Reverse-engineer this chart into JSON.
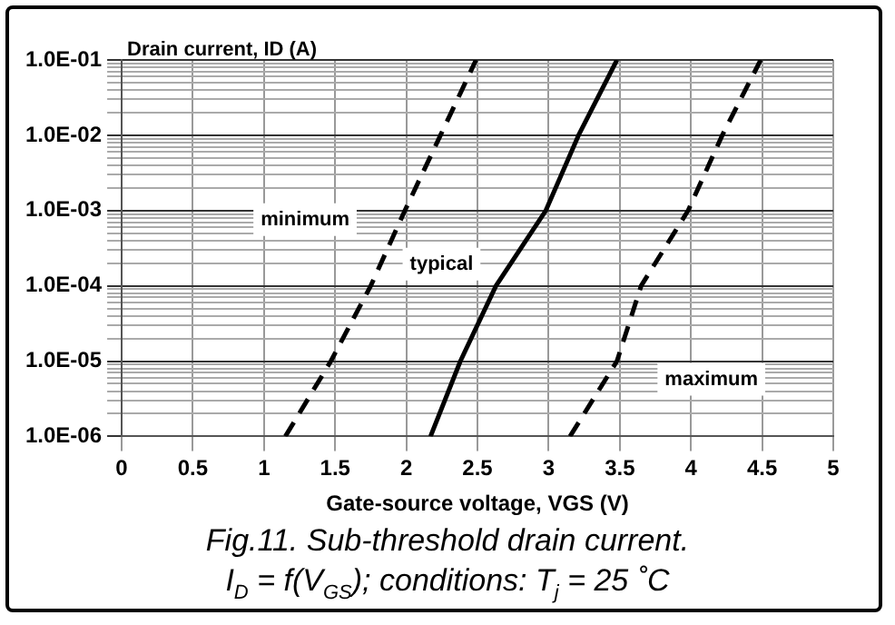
{
  "chart_data": {
    "type": "line",
    "ylabel": "Drain current, ID (A)",
    "xlabel": "Gate-source voltage, VGS (V)",
    "series": [
      {
        "name": "minimum",
        "color": "#000000",
        "line_style": "dashed",
        "x": [
          1.15,
          1.47,
          1.75,
          1.99,
          2.24,
          2.49
        ],
        "values": [
          1e-06,
          1e-05,
          0.0001,
          0.001,
          0.01,
          0.1
        ]
      },
      {
        "name": "typical",
        "color": "#000000",
        "line_style": "solid",
        "x": [
          2.17,
          2.38,
          2.63,
          2.98,
          3.21,
          3.48
        ],
        "values": [
          1e-06,
          1e-05,
          0.0001,
          0.001,
          0.01,
          0.1
        ]
      },
      {
        "name": "maximum",
        "color": "#000000",
        "line_style": "dashed",
        "x": [
          3.15,
          3.48,
          3.65,
          3.98,
          4.22,
          4.49
        ],
        "values": [
          1e-06,
          1e-05,
          0.0001,
          0.001,
          0.01,
          0.1
        ]
      }
    ],
    "log": "y",
    "xlim": [
      0,
      5
    ],
    "xticks": [
      0,
      0.5,
      1,
      1.5,
      2,
      2.5,
      3,
      3.5,
      4,
      4.5,
      5
    ],
    "ylim": [
      1e-06,
      0.1
    ],
    "yticks": [
      {
        "value": 1e-06,
        "label": "1.0E-06"
      },
      {
        "value": 2e-06,
        "label": null
      },
      {
        "value": 3e-06,
        "label": null
      },
      {
        "value": 4e-06,
        "label": null
      },
      {
        "value": 5e-06,
        "label": null
      },
      {
        "value": 6e-06,
        "label": null
      },
      {
        "value": 7e-06,
        "label": null
      },
      {
        "value": 8e-06,
        "label": null
      },
      {
        "value": 9e-06,
        "label": null
      },
      {
        "value": 1e-05,
        "label": "1.0E-05"
      },
      {
        "value": 2e-05,
        "label": null
      },
      {
        "value": 3e-05,
        "label": null
      },
      {
        "value": 4e-05,
        "label": null
      },
      {
        "value": 5e-05,
        "label": null
      },
      {
        "value": 6e-05,
        "label": null
      },
      {
        "value": 7e-05,
        "label": null
      },
      {
        "value": 8e-05,
        "label": null
      },
      {
        "value": 9e-05,
        "label": null
      },
      {
        "value": 0.0001,
        "label": "1.0E-04"
      },
      {
        "value": 0.0002,
        "label": null
      },
      {
        "value": 0.0003,
        "label": null
      },
      {
        "value": 0.0004,
        "label": null
      },
      {
        "value": 0.0005,
        "label": null
      },
      {
        "value": 0.0006,
        "label": null
      },
      {
        "value": 0.0007,
        "label": null
      },
      {
        "value": 0.0008,
        "label": null
      },
      {
        "value": 0.0009,
        "label": null
      },
      {
        "value": 0.001,
        "label": "1.0E-03"
      },
      {
        "value": 0.002,
        "label": null
      },
      {
        "value": 0.003,
        "label": null
      },
      {
        "value": 0.004,
        "label": null
      },
      {
        "value": 0.005,
        "label": null
      },
      {
        "value": 0.006,
        "label": null
      },
      {
        "value": 0.007,
        "label": null
      },
      {
        "value": 0.008,
        "label": null
      },
      {
        "value": 0.009,
        "label": null
      },
      {
        "value": 0.01,
        "label": "1.0E-02"
      },
      {
        "value": 0.02,
        "label": null
      },
      {
        "value": 0.03,
        "label": null
      },
      {
        "value": 0.04,
        "label": null
      },
      {
        "value": 0.05,
        "label": null
      },
      {
        "value": 0.06,
        "label": null
      },
      {
        "value": 0.07,
        "label": null
      },
      {
        "value": 0.08,
        "label": null
      },
      {
        "value": 0.09,
        "label": null
      },
      {
        "value": 0.1,
        "label": "1.0E-01"
      }
    ],
    "grid": true,
    "marker": "none",
    "legend": false,
    "annotations": [
      "Fig.11.   Sub-threshold drain current.",
      "I$_{D}$ = f(V$_{GS}$); conditions: T$_{j}$ = 25 ˚C"
    ]
  }
}
